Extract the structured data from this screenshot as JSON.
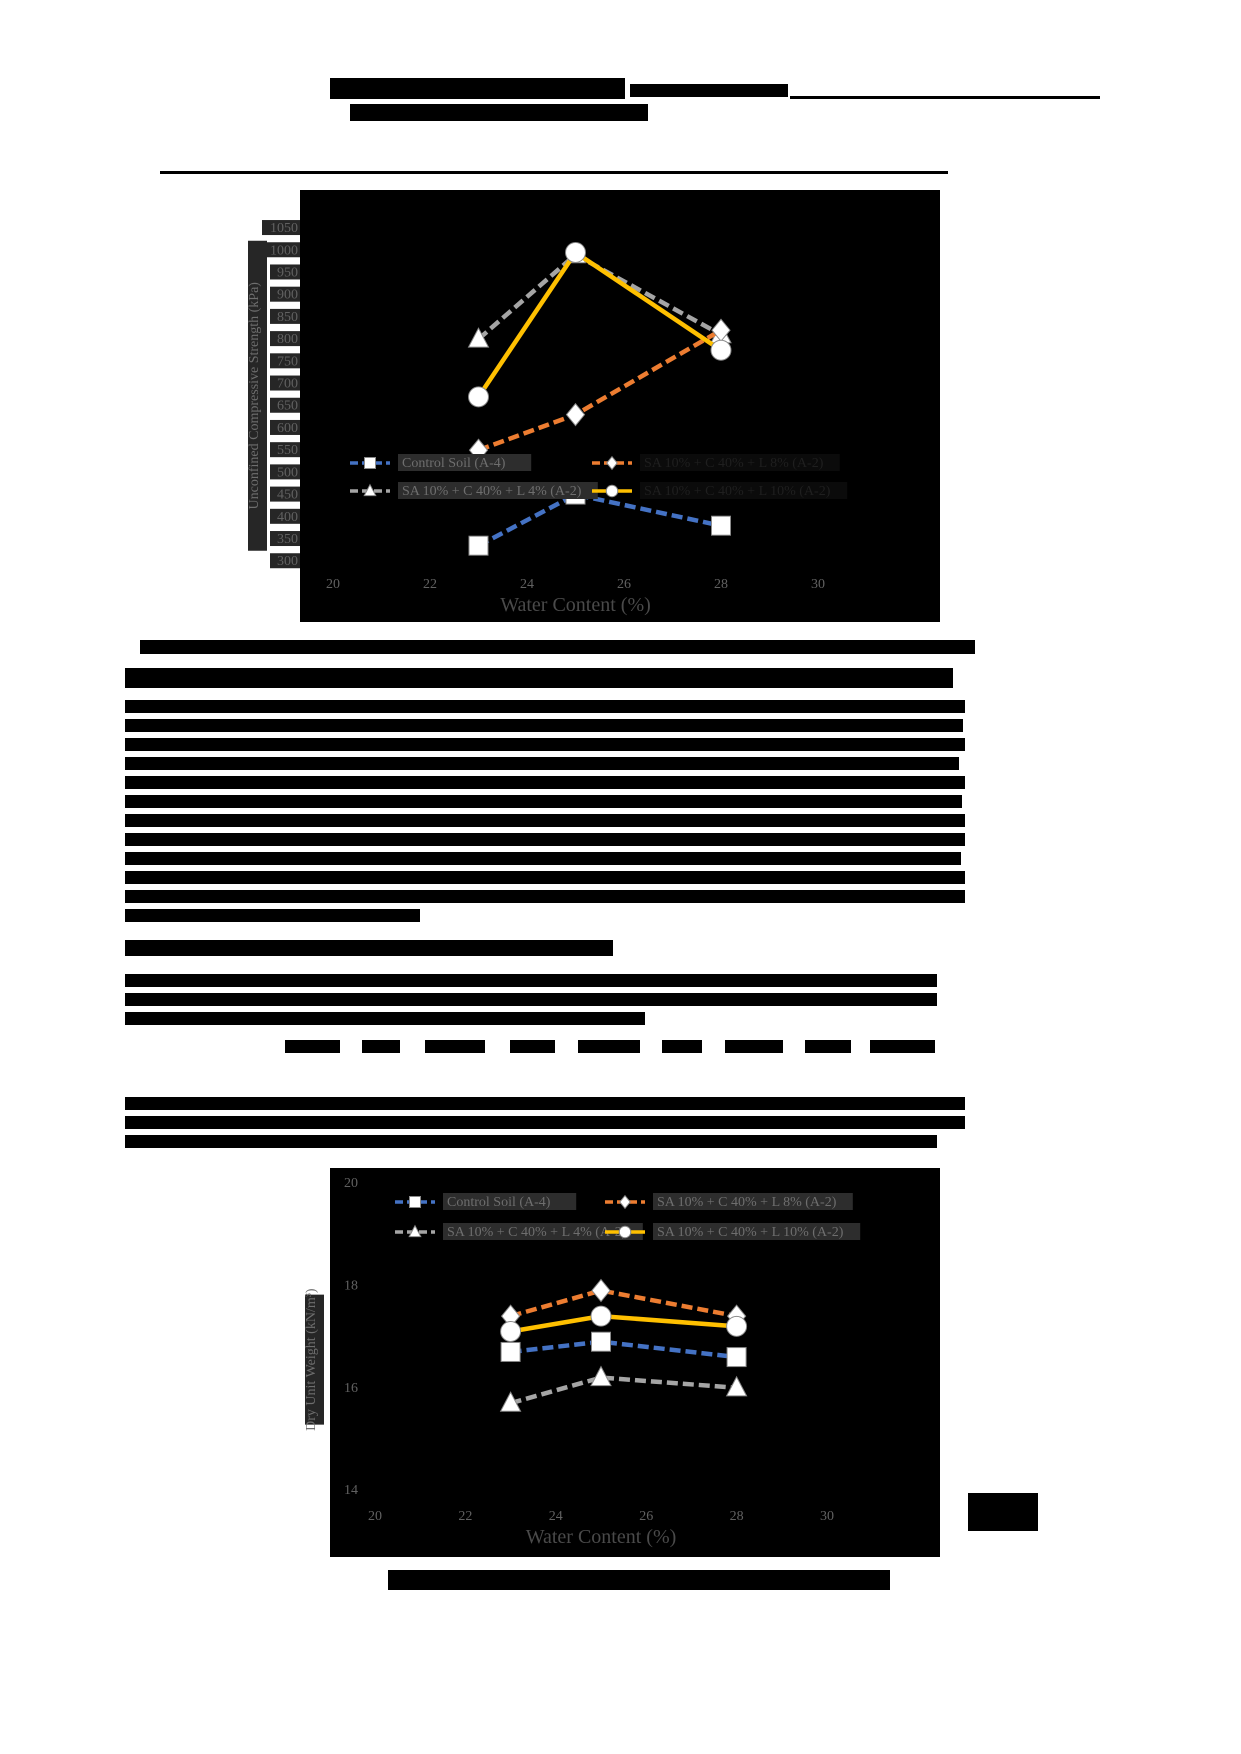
{
  "page": {
    "kind": "report-page-with-redacted-text",
    "page_number_visible": false
  },
  "chart_data": [
    {
      "type": "line",
      "title": "",
      "xlabel": "Water Content (%)",
      "ylabel": "Unconfined Compressive Strength (kPa)",
      "x": [
        23,
        25,
        28
      ],
      "x_ticks": [
        20,
        22,
        24,
        26,
        28,
        30
      ],
      "y_ticks": [
        300,
        350,
        400,
        450,
        500,
        550,
        600,
        650,
        700,
        750,
        800,
        850,
        900,
        950,
        1000,
        1050
      ],
      "xlim": [
        19.3,
        32.5
      ],
      "ylim": [
        285,
        1060
      ],
      "grid": false,
      "plot_background": "#000000",
      "legend_position": "inside-middle-left",
      "series": [
        {
          "name": "Control Soil (A-4)",
          "color": "#4472C4",
          "marker": "square",
          "dash": "11 5",
          "values": [
            335,
            450,
            380
          ]
        },
        {
          "name": "SA 10% + C 40% + L 4% (A-2)",
          "color": "#A5A5A5",
          "marker": "triangle",
          "dash": "11 5",
          "values": [
            800,
            990,
            810
          ]
        },
        {
          "name": "SA 10% + C 40% + L 8% (A-2)",
          "color": "#ED7D31",
          "marker": "diamond",
          "dash": "11 5",
          "values": [
            550,
            630,
            820
          ]
        },
        {
          "name": "SA 10% + C 40% + L 10% (A-2)",
          "color": "#FFC000",
          "marker": "circle",
          "dash": "",
          "values": [
            670,
            995,
            775
          ]
        }
      ],
      "legend_rows": [
        [
          0,
          2
        ],
        [
          1,
          3
        ]
      ]
    },
    {
      "type": "line",
      "title": "",
      "xlabel": "Water Content (%)",
      "ylabel": "Dry Unit Weight (kN/m³)",
      "x": [
        23,
        25,
        28
      ],
      "x_ticks": [
        20,
        22,
        24,
        26,
        28,
        30
      ],
      "y_ticks": [
        14,
        16,
        18,
        20
      ],
      "xlim": [
        19.0,
        32.5
      ],
      "ylim": [
        12.8,
        20.3
      ],
      "grid": false,
      "plot_background": "#000000",
      "legend_position": "inside-top",
      "series": [
        {
          "name": "Control Soil (A-4)",
          "color": "#4472C4",
          "marker": "square",
          "dash": "11 5",
          "values": [
            16.7,
            16.9,
            16.6
          ]
        },
        {
          "name": "SA 10% + C 40% + L 4% (A-2)",
          "color": "#A5A5A5",
          "marker": "triangle",
          "dash": "11 5",
          "values": [
            15.7,
            16.2,
            16.0
          ]
        },
        {
          "name": "SA 10% + C 40% + L 8% (A-2)",
          "color": "#ED7D31",
          "marker": "diamond",
          "dash": "11 5",
          "values": [
            17.4,
            17.9,
            17.4
          ]
        },
        {
          "name": "SA 10% + C 40% + L 10% (A-2)",
          "color": "#FFC000",
          "marker": "circle",
          "dash": "",
          "values": [
            17.1,
            17.4,
            17.2
          ]
        }
      ],
      "legend_rows": [
        [
          0,
          2
        ],
        [
          1,
          3
        ]
      ]
    }
  ],
  "text_styles": {
    "tick_color": "#616161",
    "axis_label_color": "#4a4a4a",
    "legend_text_color": "#6e6e6e",
    "legend_text_color_dim": "#1f1f1f",
    "tick_box_color": "#262626",
    "legend_box_color": "#2d2d2d",
    "legend_box_color_dim": "#0b0b0b"
  }
}
